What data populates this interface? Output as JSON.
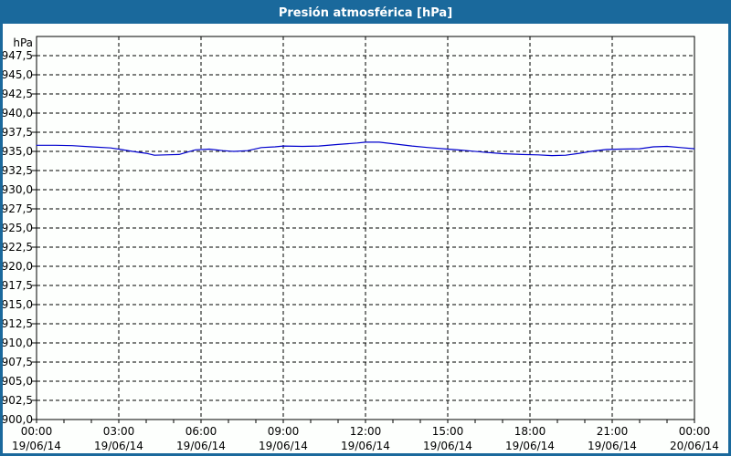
{
  "window": {
    "title": "Presión atmosférica [hPa]"
  },
  "colors": {
    "frame": "#1a699c",
    "title_bg": "#1a699c",
    "title_text": "#ffffff",
    "page_bg": "#fdfffd",
    "plot_bg": "#fdfffd",
    "grid": "#000000",
    "axis": "#000000",
    "label_text": "#000000",
    "line": "#0000cd"
  },
  "chart_data": {
    "type": "line",
    "title": "Presión atmosférica [hPa]",
    "ylabel": "hPa",
    "xlabel": "",
    "grid": true,
    "legend": false,
    "y_axis": {
      "min": 900,
      "max": 950,
      "tick_step": 2.5,
      "unit_label": "hPa",
      "tick_labels": [
        "947,5",
        "945,0",
        "942,5",
        "940,0",
        "937,5",
        "935,0",
        "932,5",
        "930,0",
        "927,5",
        "925,0",
        "922,5",
        "920,0",
        "917,5",
        "915,0",
        "912,5",
        "910,0",
        "907,5",
        "905,0",
        "902,5",
        "900,0"
      ]
    },
    "x_axis": {
      "range_hours": [
        0,
        24
      ],
      "major_step_hours": 3,
      "minor_step_hours": 1,
      "tick_labels": [
        {
          "time": "00:00",
          "date": "19/06/14"
        },
        {
          "time": "03:00",
          "date": "19/06/14"
        },
        {
          "time": "06:00",
          "date": "19/06/14"
        },
        {
          "time": "09:00",
          "date": "19/06/14"
        },
        {
          "time": "12:00",
          "date": "19/06/14"
        },
        {
          "time": "15:00",
          "date": "19/06/14"
        },
        {
          "time": "18:00",
          "date": "19/06/14"
        },
        {
          "time": "21:00",
          "date": "19/06/14"
        },
        {
          "time": "00:00",
          "date": "20/06/14"
        }
      ]
    },
    "series": [
      {
        "name": "Presión atmosférica",
        "color": "#0000cd",
        "x_hours": [
          0,
          0.7,
          1.3,
          2,
          2.7,
          3,
          3.5,
          4,
          4.3,
          4.7,
          5.2,
          5.5,
          5.8,
          6.3,
          6.8,
          7.2,
          7.7,
          8.2,
          8.7,
          9,
          9.7,
          10.3,
          11,
          11.7,
          12,
          12.5,
          13,
          13.7,
          14.3,
          15,
          15.7,
          16.3,
          17,
          17.7,
          18.3,
          18.8,
          19.3,
          19.8,
          20.3,
          20.8,
          21.3,
          22,
          22.5,
          23,
          23.5,
          24
        ],
        "values_hpa": [
          935.8,
          935.8,
          935.75,
          935.6,
          935.45,
          935.3,
          935.0,
          934.75,
          934.5,
          934.55,
          934.6,
          934.9,
          935.2,
          935.3,
          935.1,
          935.0,
          935.1,
          935.5,
          935.6,
          935.7,
          935.65,
          935.7,
          935.9,
          936.1,
          936.2,
          936.2,
          936.0,
          935.7,
          935.5,
          935.3,
          935.1,
          934.9,
          934.7,
          934.6,
          934.55,
          934.45,
          934.5,
          934.75,
          935.05,
          935.25,
          935.3,
          935.35,
          935.6,
          935.65,
          935.5,
          935.35
        ]
      }
    ]
  }
}
